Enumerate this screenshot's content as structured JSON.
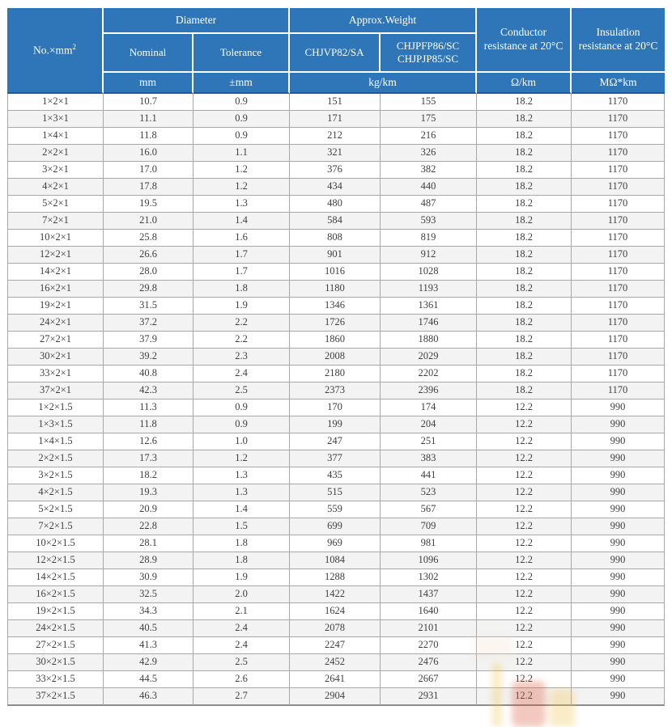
{
  "page": {
    "background": "#ffffff"
  },
  "colors": {
    "header_bg": "#2e76b7",
    "header_text": "#ffffff",
    "header_divider": "#ffffff",
    "header_bottom_line": "#1b5c9b",
    "body_border": "#a8a8a8",
    "row_stripe_bg": "#f3f3f3",
    "row_plain_bg": "#ffffff",
    "body_text": "#3f3f3f",
    "watermark_red": "#d9512f",
    "watermark_yellow": "#eec34a",
    "watermark_pink": "#f4d8c8"
  },
  "table": {
    "header": {
      "col_no_base": "No.×mm",
      "col_no_sup": "2",
      "diameter": "Diameter",
      "approx_weight": "Approx.Weight",
      "nominal": "Nominal",
      "tolerance": "Tolerance",
      "weight_type_a": "CHJVP82/SA",
      "weight_type_b_line1": "CHJPFP86/SC",
      "weight_type_b_line2": "CHJPJP85/SC",
      "conductor_resistance": "Conductor resistance at 20°C",
      "insulation_resistance": "Insulation resistance at 20°C",
      "unit_mm": "mm",
      "unit_pmm": "±mm",
      "unit_kgkm": "kg/km",
      "unit_ohmkm": "Ω/km",
      "unit_mohmkm": "MΩ*km"
    },
    "rows": [
      [
        "1×2×1",
        "10.7",
        "0.9",
        "151",
        "155",
        "18.2",
        "1170"
      ],
      [
        "1×3×1",
        "11.1",
        "0.9",
        "171",
        "175",
        "18.2",
        "1170"
      ],
      [
        "1×4×1",
        "11.8",
        "0.9",
        "212",
        "216",
        "18.2",
        "1170"
      ],
      [
        "2×2×1",
        "16.0",
        "1.1",
        "321",
        "326",
        "18.2",
        "1170"
      ],
      [
        "3×2×1",
        "17.0",
        "1.2",
        "376",
        "382",
        "18.2",
        "1170"
      ],
      [
        "4×2×1",
        "17.8",
        "1.2",
        "434",
        "440",
        "18.2",
        "1170"
      ],
      [
        "5×2×1",
        "19.5",
        "1.3",
        "480",
        "487",
        "18.2",
        "1170"
      ],
      [
        "7×2×1",
        "21.0",
        "1.4",
        "584",
        "593",
        "18.2",
        "1170"
      ],
      [
        "10×2×1",
        "25.8",
        "1.6",
        "808",
        "819",
        "18.2",
        "1170"
      ],
      [
        "12×2×1",
        "26.6",
        "1.7",
        "901",
        "912",
        "18.2",
        "1170"
      ],
      [
        "14×2×1",
        "28.0",
        "1.7",
        "1016",
        "1028",
        "18.2",
        "1170"
      ],
      [
        "16×2×1",
        "29.8",
        "1.8",
        "1180",
        "1193",
        "18.2",
        "1170"
      ],
      [
        "19×2×1",
        "31.5",
        "1.9",
        "1346",
        "1361",
        "18.2",
        "1170"
      ],
      [
        "24×2×1",
        "37.2",
        "2.2",
        "1726",
        "1746",
        "18.2",
        "1170"
      ],
      [
        "27×2×1",
        "37.9",
        "2.2",
        "1860",
        "1880",
        "18.2",
        "1170"
      ],
      [
        "30×2×1",
        "39.2",
        "2.3",
        "2008",
        "2029",
        "18.2",
        "1170"
      ],
      [
        "33×2×1",
        "40.8",
        "2.4",
        "2180",
        "2202",
        "18.2",
        "1170"
      ],
      [
        "37×2×1",
        "42.3",
        "2.5",
        "2373",
        "2396",
        "18.2",
        "1170"
      ],
      [
        "1×2×1.5",
        "11.3",
        "0.9",
        "170",
        "174",
        "12.2",
        "990"
      ],
      [
        "1×3×1.5",
        "11.8",
        "0.9",
        "199",
        "204",
        "12.2",
        "990"
      ],
      [
        "1×4×1.5",
        "12.6",
        "1.0",
        "247",
        "251",
        "12.2",
        "990"
      ],
      [
        "2×2×1.5",
        "17.3",
        "1.2",
        "377",
        "383",
        "12.2",
        "990"
      ],
      [
        "3×2×1.5",
        "18.2",
        "1.3",
        "435",
        "441",
        "12.2",
        "990"
      ],
      [
        "4×2×1.5",
        "19.3",
        "1.3",
        "515",
        "523",
        "12.2",
        "990"
      ],
      [
        "5×2×1.5",
        "20.9",
        "1.4",
        "559",
        "567",
        "12.2",
        "990"
      ],
      [
        "7×2×1.5",
        "22.8",
        "1.5",
        "699",
        "709",
        "12.2",
        "990"
      ],
      [
        "10×2×1.5",
        "28.1",
        "1.8",
        "969",
        "981",
        "12.2",
        "990"
      ],
      [
        "12×2×1.5",
        "28.9",
        "1.8",
        "1084",
        "1096",
        "12.2",
        "990"
      ],
      [
        "14×2×1.5",
        "30.9",
        "1.9",
        "1288",
        "1302",
        "12.2",
        "990"
      ],
      [
        "16×2×1.5",
        "32.5",
        "2.0",
        "1422",
        "1437",
        "12.2",
        "990"
      ],
      [
        "19×2×1.5",
        "34.3",
        "2.1",
        "1624",
        "1640",
        "12.2",
        "990"
      ],
      [
        "24×2×1.5",
        "40.5",
        "2.4",
        "2078",
        "2101",
        "12.2",
        "990"
      ],
      [
        "27×2×1.5",
        "41.3",
        "2.4",
        "2247",
        "2270",
        "12.2",
        "990"
      ],
      [
        "30×2×1.5",
        "42.9",
        "2.5",
        "2452",
        "2476",
        "12.2",
        "990"
      ],
      [
        "33×2×1.5",
        "44.5",
        "2.6",
        "2641",
        "2667",
        "12.2",
        "990"
      ],
      [
        "37×2×1.5",
        "46.3",
        "2.7",
        "2904",
        "2931",
        "12.2",
        "990"
      ]
    ],
    "column_names": [
      "no",
      "nominal",
      "tolerance",
      "weight-a",
      "weight-b",
      "conductor-resistance",
      "insulation-resistance"
    ]
  }
}
